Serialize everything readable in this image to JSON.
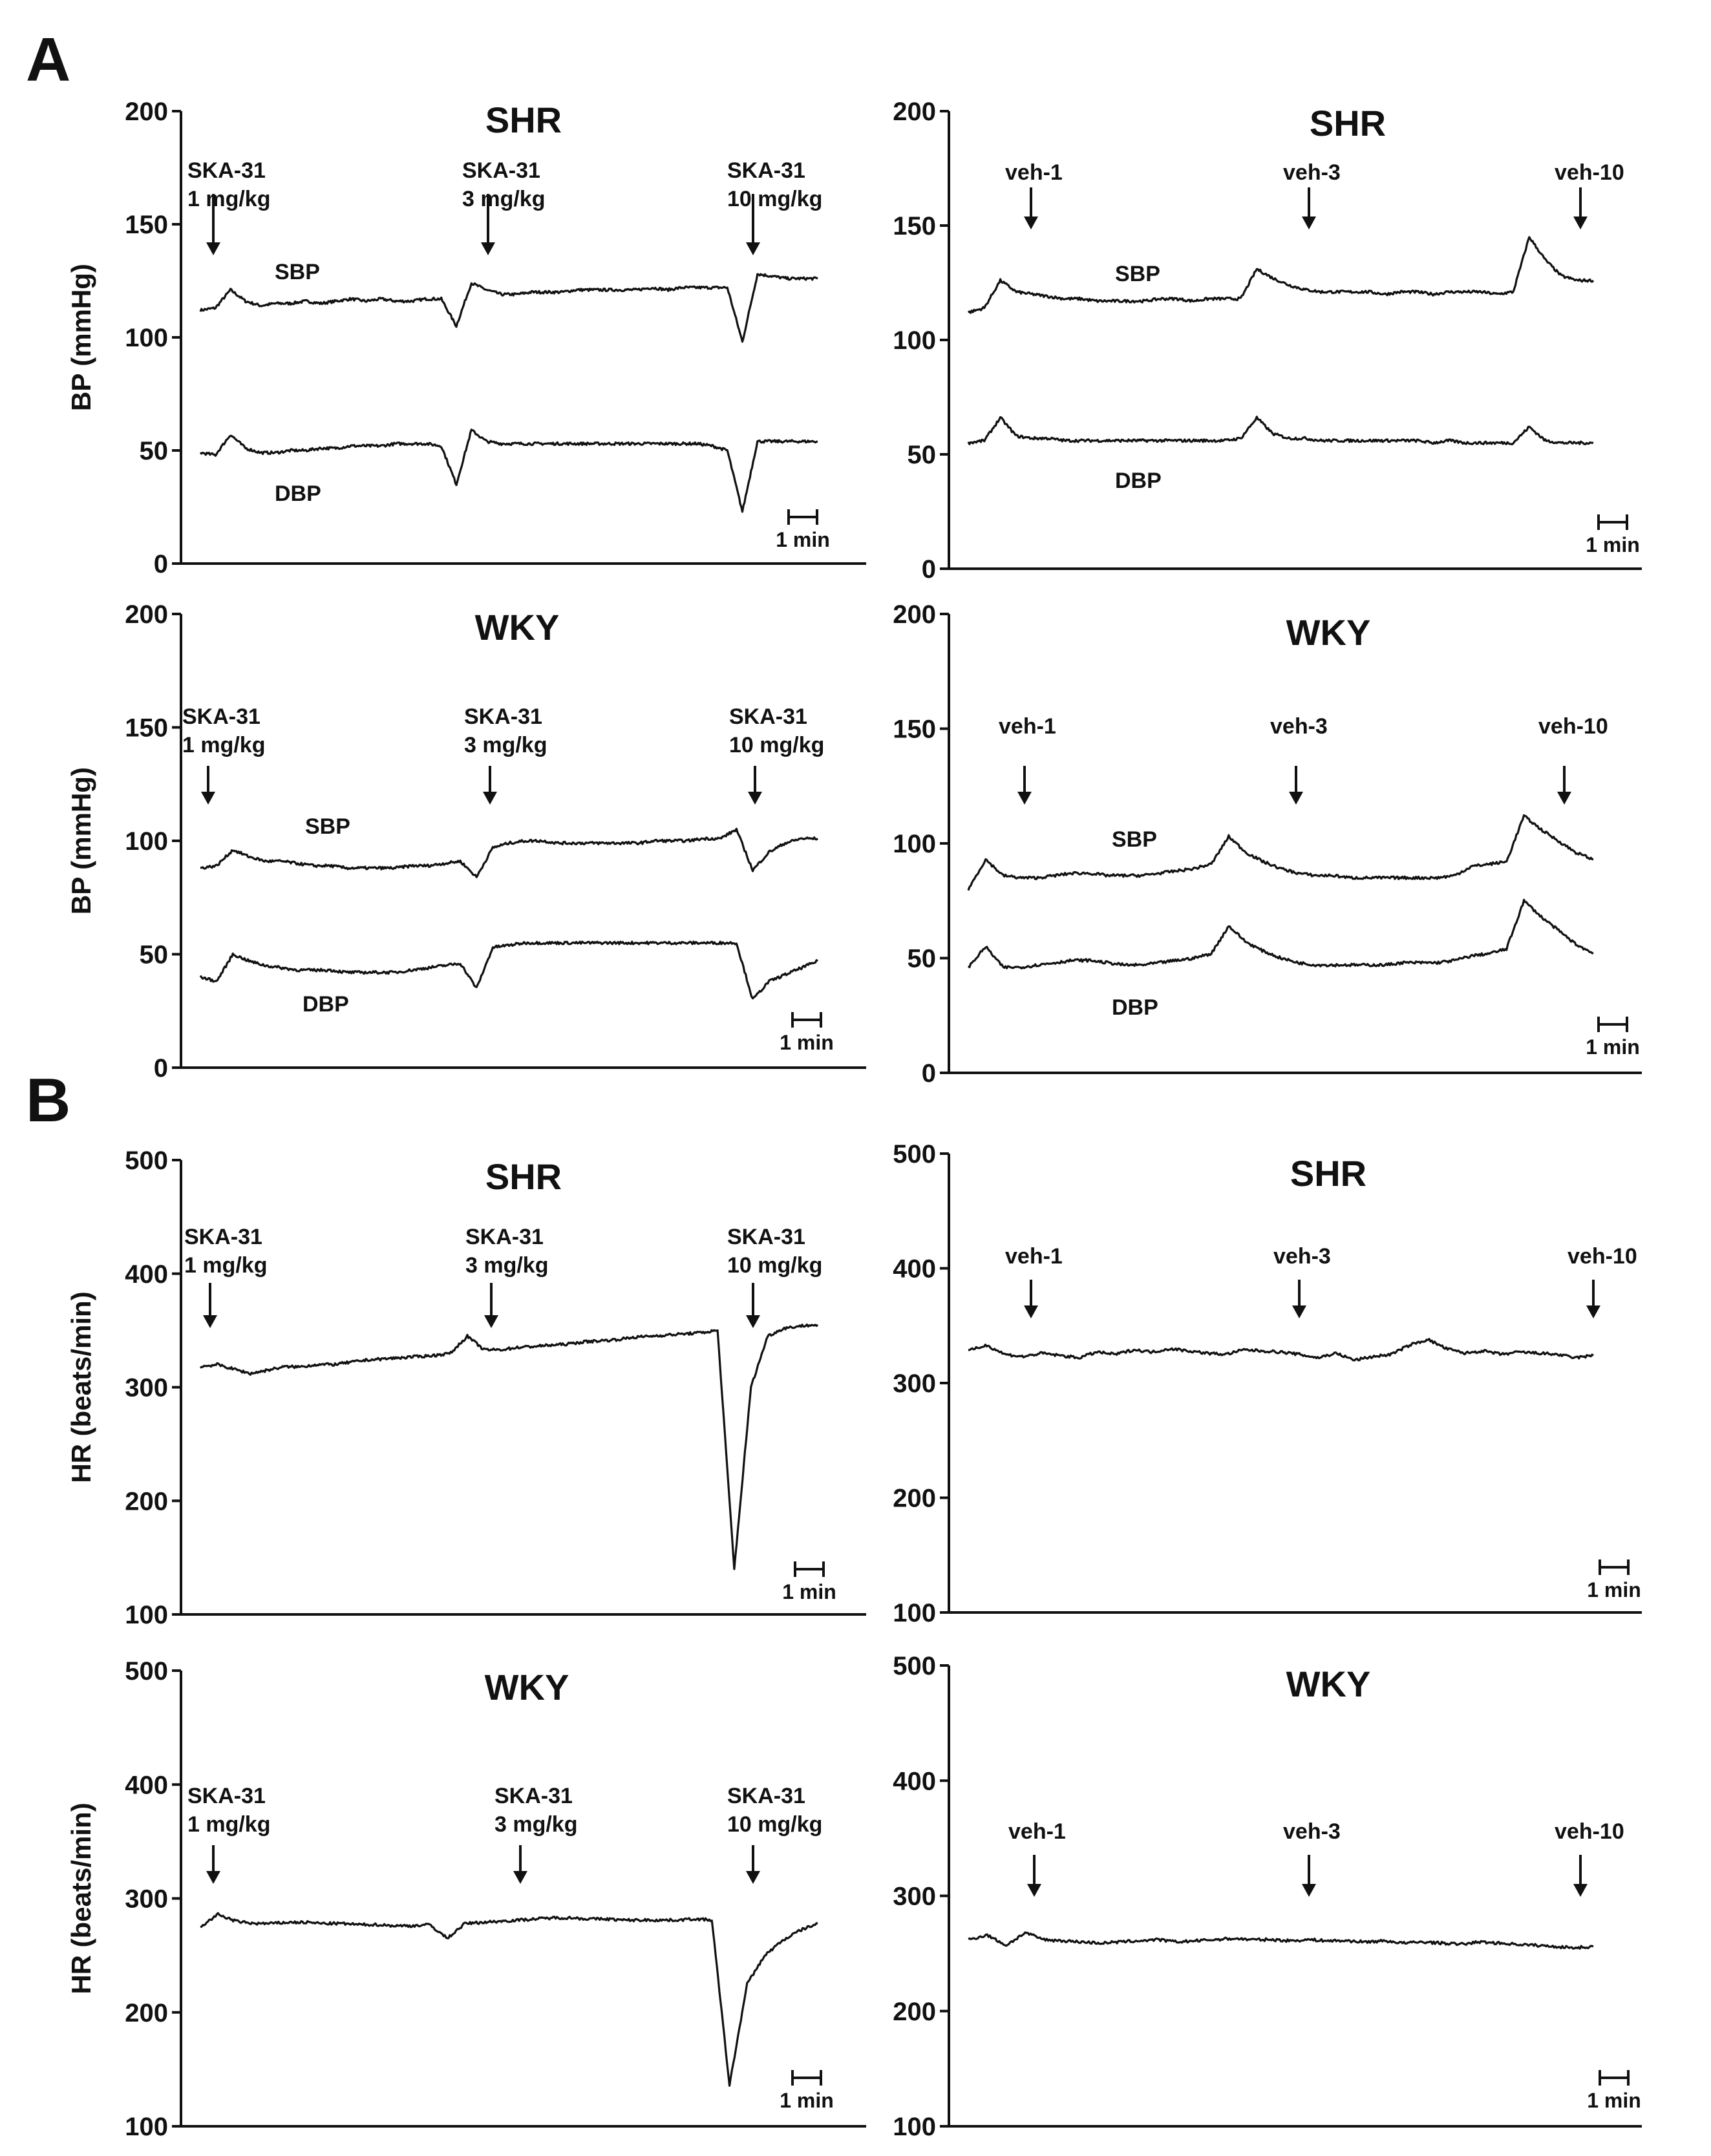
{
  "figure": {
    "panel_letters": [
      "A",
      "B"
    ]
  },
  "chart_data": [
    {
      "id": "A-SHR-SKA",
      "type": "line",
      "title": "SHR",
      "ylabel": "BP (mmHg)",
      "ylim": [
        0,
        200
      ],
      "yticks": [
        0,
        50,
        100,
        150,
        200
      ],
      "markers": [
        "SKA-31\n1 mg/kg",
        "SKA-31\n3 mg/kg",
        "SKA-31\n10 mg/kg"
      ],
      "scalebar": "1 min",
      "series": [
        {
          "name": "SBP",
          "values": [
            112,
            113,
            121,
            116,
            114,
            115,
            115,
            116,
            115,
            116,
            117,
            116,
            117,
            116,
            116,
            117,
            117,
            105,
            124,
            121,
            119,
            119,
            120,
            120,
            120,
            121,
            121,
            121,
            121,
            121,
            122,
            121,
            122,
            122,
            122,
            122,
            98,
            128,
            127,
            126,
            126,
            126
          ]
        },
        {
          "name": "DBP",
          "values": [
            49,
            48,
            57,
            51,
            49,
            49,
            50,
            50,
            51,
            51,
            52,
            52,
            52,
            53,
            53,
            53,
            52,
            35,
            59,
            54,
            53,
            53,
            53,
            53,
            53,
            53,
            53,
            53,
            53,
            53,
            53,
            53,
            53,
            53,
            52,
            50,
            23,
            54,
            54,
            54,
            54,
            54
          ]
        }
      ]
    },
    {
      "id": "A-SHR-veh",
      "type": "line",
      "title": "SHR",
      "ylabel": "",
      "ylim": [
        0,
        200
      ],
      "yticks": [
        0,
        50,
        100,
        150,
        200
      ],
      "markers": [
        "veh-1",
        "veh-3",
        "veh-10"
      ],
      "scalebar": "1 min",
      "series": [
        {
          "name": "SBP",
          "values": [
            112,
            114,
            126,
            121,
            120,
            119,
            118,
            118,
            117,
            117,
            117,
            117,
            118,
            118,
            117,
            118,
            118,
            118,
            131,
            127,
            124,
            122,
            121,
            121,
            121,
            121,
            120,
            121,
            121,
            120,
            121,
            121,
            121,
            120,
            121,
            145,
            135,
            128,
            126,
            126
          ]
        },
        {
          "name": "DBP",
          "values": [
            55,
            56,
            66,
            58,
            57,
            57,
            56,
            56,
            56,
            56,
            56,
            56,
            56,
            56,
            56,
            56,
            56,
            57,
            66,
            59,
            57,
            57,
            56,
            56,
            56,
            56,
            56,
            56,
            56,
            55,
            56,
            55,
            55,
            55,
            55,
            62,
            56,
            55,
            55,
            55
          ]
        }
      ]
    },
    {
      "id": "A-WKY-SKA",
      "type": "line",
      "title": "WKY",
      "ylabel": "BP (mmHg)",
      "ylim": [
        0,
        200
      ],
      "yticks": [
        0,
        50,
        100,
        150,
        200
      ],
      "markers": [
        "SKA-31\n1 mg/kg",
        "SKA-31\n3 mg/kg",
        "SKA-31\n10 mg/kg"
      ],
      "scalebar": "1 min",
      "series": [
        {
          "name": "SBP",
          "values": [
            88,
            89,
            96,
            93,
            91,
            91,
            90,
            89,
            89,
            88,
            88,
            88,
            88,
            89,
            89,
            90,
            91,
            84,
            97,
            99,
            100,
            100,
            99,
            99,
            99,
            99,
            99,
            99,
            100,
            100,
            100,
            101,
            101,
            105,
            87,
            95,
            99,
            101,
            101
          ]
        },
        {
          "name": "DBP",
          "values": [
            40,
            38,
            50,
            47,
            45,
            44,
            43,
            43,
            43,
            42,
            42,
            42,
            42,
            43,
            44,
            45,
            46,
            35,
            53,
            54,
            55,
            55,
            55,
            55,
            55,
            55,
            55,
            55,
            55,
            55,
            55,
            55,
            55,
            55,
            30,
            38,
            41,
            44,
            47
          ]
        }
      ]
    },
    {
      "id": "A-WKY-veh",
      "type": "line",
      "title": "WKY",
      "ylabel": "",
      "ylim": [
        0,
        200
      ],
      "yticks": [
        0,
        50,
        100,
        150,
        200
      ],
      "markers": [
        "veh-1",
        "veh-3",
        "veh-10"
      ],
      "scalebar": "1 min",
      "series": [
        {
          "name": "SBP",
          "values": [
            80,
            93,
            86,
            85,
            85,
            86,
            87,
            87,
            86,
            86,
            86,
            87,
            88,
            89,
            91,
            103,
            96,
            92,
            89,
            87,
            86,
            86,
            85,
            85,
            85,
            85,
            85,
            85,
            86,
            90,
            91,
            92,
            112,
            106,
            101,
            96,
            93
          ]
        },
        {
          "name": "DBP",
          "values": [
            46,
            55,
            46,
            46,
            47,
            48,
            49,
            49,
            48,
            47,
            47,
            48,
            49,
            50,
            52,
            64,
            57,
            53,
            50,
            48,
            47,
            47,
            47,
            47,
            47,
            48,
            48,
            48,
            49,
            51,
            52,
            54,
            75,
            68,
            62,
            56,
            52
          ]
        }
      ]
    },
    {
      "id": "B-SHR-SKA",
      "type": "line",
      "title": "SHR",
      "ylabel": "HR (beats/min)",
      "ylim": [
        100,
        500
      ],
      "yticks": [
        100,
        200,
        300,
        400,
        500
      ],
      "markers": [
        "SKA-31\n1 mg/kg",
        "SKA-31\n3 mg/kg",
        "SKA-31\n10 mg/kg"
      ],
      "scalebar": "1 min",
      "series": [
        {
          "name": "",
          "values": [
            318,
            320,
            316,
            312,
            315,
            318,
            318,
            320,
            320,
            322,
            324,
            325,
            326,
            327,
            328,
            330,
            345,
            333,
            333,
            335,
            336,
            337,
            338,
            340,
            341,
            342,
            344,
            345,
            346,
            347,
            348,
            350,
            140,
            300,
            345,
            352,
            354,
            355
          ]
        }
      ]
    },
    {
      "id": "B-SHR-veh",
      "type": "line",
      "title": "SHR",
      "ylabel": "",
      "ylim": [
        100,
        500
      ],
      "yticks": [
        100,
        200,
        300,
        400,
        500
      ],
      "markers": [
        "veh-1",
        "veh-3",
        "veh-10"
      ],
      "scalebar": "1 min",
      "series": [
        {
          "name": "",
          "values": [
            328,
            333,
            325,
            323,
            326,
            324,
            322,
            327,
            325,
            329,
            327,
            330,
            328,
            326,
            325,
            329,
            328,
            327,
            325,
            322,
            326,
            320,
            323,
            325,
            333,
            338,
            330,
            326,
            328,
            325,
            327,
            326,
            325,
            322,
            324
          ]
        }
      ]
    },
    {
      "id": "B-WKY-SKA",
      "type": "line",
      "title": "WKY",
      "ylabel": "HR (beats/min)",
      "ylim": [
        100,
        500
      ],
      "yticks": [
        100,
        200,
        300,
        400,
        500
      ],
      "markers": [
        "SKA-31\n1 mg/kg",
        "SKA-31\n3 mg/kg",
        "SKA-31\n10 mg/kg"
      ],
      "scalebar": "1 min",
      "series": [
        {
          "name": "",
          "values": [
            275,
            286,
            280,
            278,
            278,
            279,
            279,
            278,
            278,
            277,
            277,
            276,
            276,
            277,
            265,
            278,
            279,
            280,
            281,
            282,
            283,
            283,
            282,
            282,
            281,
            281,
            281,
            281,
            282,
            281,
            136,
            225,
            250,
            263,
            272,
            278
          ]
        }
      ]
    },
    {
      "id": "B-WKY-veh",
      "type": "line",
      "title": "WKY",
      "ylabel": "",
      "ylim": [
        100,
        500
      ],
      "yticks": [
        100,
        200,
        300,
        400,
        500
      ],
      "markers": [
        "veh-1",
        "veh-3",
        "veh-10"
      ],
      "scalebar": "1 min",
      "series": [
        {
          "name": "",
          "values": [
            262,
            266,
            257,
            268,
            262,
            261,
            260,
            259,
            260,
            261,
            262,
            260,
            261,
            262,
            263,
            262,
            262,
            261,
            262,
            261,
            261,
            260,
            261,
            259,
            260,
            259,
            258,
            260,
            259,
            258,
            257,
            256,
            255,
            256
          ]
        }
      ]
    }
  ]
}
